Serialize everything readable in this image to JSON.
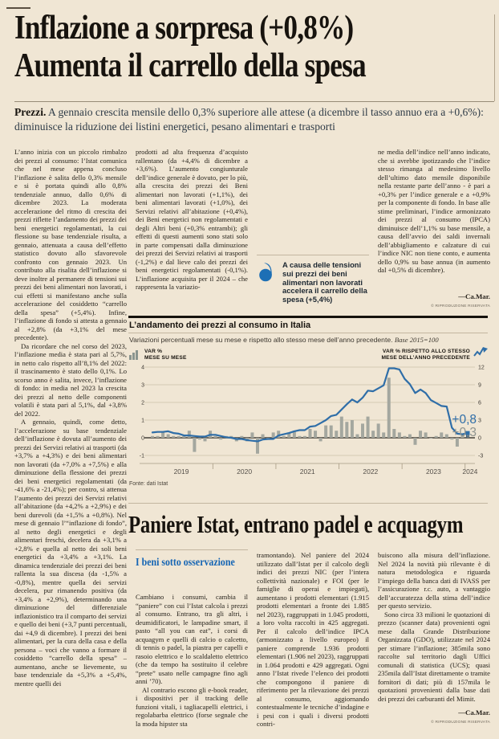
{
  "page": {
    "background": "#f0e6d4"
  },
  "article1": {
    "headline_line1": "Inflazione a sorpresa (+0,8%)",
    "headline_line2": "Aumenta il carrello della spesa",
    "standfirst_kicker": "Prezzi.",
    "standfirst": "A gennaio crescita mensile dello 0,3% superiore alle attese (a dicembre il tasso annuo era a +0,6%): diminuisce la riduzione dei listini energetici, pesano alimentari e trasporti",
    "col1_paras": [
      "L’anno inizia con un piccolo rimbalzo dei prezzi al consumo: l’Istat comunica che nel mese appena concluso l’inflazione è salita dello 0,3% mensile e si è portata quindi allo 0,8% tendenziale annuo, dallo 0,6% di dicembre 2023. La moderata accelerazione del ritmo di crescita dei prezzi riflette l’andamento dei prezzi dei beni energetici regolamentati, la cui flessione su base tendenziale risulta, a gennaio, attenuata a causa dell’effetto statistico dovuto allo sfavorevole confronto con gennaio 2023. Un contributo alla risalita dell’inflazione si deve inoltre al permanere di tensioni sui prezzi dei beni alimentari non lavorati, i cui effetti si manifestano anche sulla accelerazione del cosiddetto “carrello della spesa” (+5,4%). Infine, l’inflazione di fondo si attesta a gennaio al +2,8% (da +3,1% del mese precedente).",
      "Da ricordare che nel corso del 2023, l’inflazione media è stata pari al 5,7%, in netto calo rispetto all’8,1% del 2022: il trascinamento è stato dello 0,1%. Lo scorso anno è salita, invece, l’inflazione di fondo: in media nel 2023 la crescita dei prezzi al netto delle componenti volatili è stata pari al 5,1%, dal +3,8% del 2022.",
      "A gennaio, quindi, come detto, l’accelerazione su base tendenziale dell’inflazione è dovuta all’aumento dei prezzi dei Servizi relativi ai trasporti (da +3,7% a +4,3%) e dei beni alimentari non lavorati (da +7,0% a +7,5%) e alla diminuzione della flessione dei prezzi dei beni energetici regolamentati (da -41,6% a -21,4%); per contro, si attenua l’aumento dei prezzi dei Servizi relativi all’abitazione (da +4,2% a +2,9%) e dei beni durevoli (da +1,5% a +0,8%). Nel mese di gennaio l’“inflazione di fondo”, al netto degli energetici e degli alimentari freschi, decelera da +3,1% a +2,8% e quella al netto dei soli beni energetici da +3,4% a +3,1%. La dinamica tendenziale dei prezzi dei beni rallenta la sua discesa (da -1,5% a -0,8%), mentre quella dei servizi decelera, pur rimanendo positiva (da +3,4% a +2,9%), determinando una diminuzione del differenziale inflazionistico tra il comparto dei servizi e quello dei beni (+3,7 punti percentuali, dai +4,9 di dicembre). I prezzi dei beni alimentari, per la cura della casa e della persona – voci che vanno a formare il cosiddetto “carrello della spesa” – aumentano, anche se lievemente, su base tendenziale da +5,3% a +5,4%, mentre quelli dei"
    ],
    "col2_paras": [
      "prodotti ad alta frequenza d’acquisto rallentano (da +4,4% di dicembre a +3,6%). L’aumento congiunturale dell’indice generale è dovuto, per lo più, alla crescita dei prezzi dei Beni alimentari non lavorati (+1,1%), dei beni alimentari lavorati (+1,0%), dei Servizi relativi all’abitazione (+0,4%), dei Beni energetici non regolamentati e degli Altri beni (+0,3% entrambi); gli effetti di questi aumenti sono stati solo in parte compensati dalla diminuzione dei prezzi dei Servizi relativi ai trasporti (-1,2%) e dal lieve calo dei prezzi dei beni energetici regolamentati (-0,1%). L’inflazione acquisita per il 2024 – che rappresenta la variazio-"
    ],
    "col4_paras": [
      "ne media dell’indice nell’anno indicato, che si avrebbe ipotizzando che l’indice stesso rimanga al medesimo livello dell’ultimo dato mensile disponibile nella restante parte dell’anno - è pari a +0,3% per l’indice generale e a +0,9% per la componente di fondo. In base alle stime preliminari, l’indice armonizzato dei prezzi al consumo (IPCA) diminuisce dell’1,1% su base mensile, a causa dell’avvio dei saldi invernali dell’abbigliamento e calzature di cui l’indice NIC non tiene conto, e aumenta dello 0,9% su base annua (in aumento dal +0,5% di dicembre)."
    ],
    "byline": "—Ca.Mar.",
    "copyright": "© RIPRODUZIONE RISERVATA",
    "pull_quote": "A causa delle tensioni sui prezzi dei beni alimentari non lavorati accelera il carrello della spesa (+5,4%)"
  },
  "chart_data": {
    "type": "bar+line combo",
    "title": "L’andamento dei prezzi al consumo in Italia",
    "subtitle": "Variazioni percentuali mese su mese e rispetto allo stesso mese dell’anno precedente.",
    "subtitle_base": "Base 2015=100",
    "legend_bars_line1": "VAR %",
    "legend_bars_line2": "MESE SU MESE",
    "legend_line_line1": "VAR % RISPETTO ALLO STESSO",
    "legend_line_line2": "MESE DELL’ANNO PRECEDENTE",
    "left_axis_ticks": [
      4,
      3,
      2,
      1,
      0,
      -1
    ],
    "right_axis_ticks": [
      12,
      9,
      6,
      3,
      0,
      -3
    ],
    "ylim_left": [
      -1,
      4
    ],
    "ylim_right": [
      -3,
      12
    ],
    "grid": true,
    "x_start": "2019-01",
    "x_end": "2024-01",
    "frequency": "monthly",
    "years": [
      "2019",
      "2020",
      "2021",
      "2022",
      "2023",
      "2024"
    ],
    "series": [
      {
        "name": "VAR % MESE SU MESE",
        "type": "bar",
        "axis": "left",
        "values": [
          0.1,
          0.1,
          0.3,
          0.2,
          0.1,
          0.1,
          0.1,
          0.4,
          -0.8,
          -0.1,
          -0.2,
          0.4,
          0.1,
          -0.1,
          0.1,
          0.1,
          -0.2,
          0.1,
          -0.2,
          0.3,
          -0.9,
          0.2,
          -0.1,
          0.3,
          0.4,
          0.1,
          0.3,
          0.4,
          0.1,
          0.1,
          0.5,
          0.4,
          -0.2,
          0.7,
          0.7,
          0.4,
          1.2,
          0.9,
          1.0,
          0.2,
          0.8,
          1.2,
          0.4,
          0.8,
          0.3,
          3.4,
          0.5,
          0.3,
          0.1,
          0.2,
          -0.4,
          0.4,
          0.3,
          0.0,
          0.1,
          0.3,
          0.2,
          -0.1,
          -0.5,
          0.2,
          0.3
        ]
      },
      {
        "name": "VAR % RISPETTO ALLO STESSO MESE DELL’ANNO PRECEDENTE",
        "type": "line",
        "axis": "right",
        "values": [
          0.9,
          1.0,
          1.0,
          1.1,
          0.8,
          0.7,
          0.4,
          0.4,
          0.3,
          0.2,
          0.2,
          0.5,
          0.5,
          0.3,
          0.1,
          0.0,
          -0.2,
          -0.2,
          -0.4,
          -0.5,
          -0.6,
          -0.3,
          -0.2,
          -0.2,
          0.4,
          0.6,
          0.8,
          1.1,
          1.3,
          1.3,
          1.9,
          2.0,
          2.5,
          3.0,
          3.7,
          3.9,
          4.8,
          5.7,
          6.5,
          6.0,
          6.8,
          8.0,
          7.9,
          8.4,
          8.9,
          11.8,
          11.8,
          11.6,
          10.0,
          9.1,
          7.6,
          8.2,
          7.6,
          6.4,
          5.9,
          5.4,
          5.3,
          1.7,
          0.7,
          0.6,
          0.8
        ]
      }
    ],
    "annotation_line": "+0,8",
    "annotation_bar": "+0,3",
    "source": "Fonte: dati Istat",
    "colors": {
      "bar": "#a4a79f",
      "bar_highlight": "#47637a",
      "line": "#2f6ea8",
      "annotation_line": "#2f6ea8",
      "annotation_bar": "#8f948f",
      "grid": "#cdc1ab",
      "zero_line": "#44403a",
      "axis_band": "#a79b85",
      "tick_label": "#3f3b35",
      "year_label": "#55504a"
    }
  },
  "article2": {
    "headline": "Paniere Istat, entrano padel e acquagym",
    "kicker": "I beni sotto osservazione",
    "colA_paras": [
      "Cambiano i consumi, cambia il “paniere” con cui l’Istat calcola i prezzi al consumo. Entrano, tra gli altri, i deumidificatori, le lampadine smart, il pasto “all you can eat”, i corsi di acquagym e quelli di calcio o calcetto, di tennis o padel, la piastra per capelli e rasoio elettrico e lo scaldaletto elettrico (che da tempo ha sostituito il celebre “prete” usato nelle campagne fino agli anni ’70).",
      "Al contrario escono gli e-book reader, i dispositivi per il tracking delle funzioni vitali, i tagliacapelli elettrici, i regolabarba elettrico (forse segnale che la moda hipster sta"
    ],
    "colB_paras": [
      "tramontando). Nel paniere del 2024 utilizzato dall’Istat per il calcolo degli indici dei prezzi NIC (per l’intera collettività nazionale) e FOI (per le famiglie di operai e impiegati), aumentano i prodotti elementari (1.915 prodotti elementari a fronte dei 1.885 nel 2023), raggruppati in 1.045 prodotti, a loro volta raccolti in 425 aggregati. Per il calcolo dell’indice IPCA (armonizzato a livello europeo) il paniere comprende 1.936 prodotti elementari (1.906 nel 2023), raggruppati in 1.064 prodotti e 429 aggregati. Ogni anno l’Istat rivede l’elenco dei prodotti che compongono il paniere di riferimento per la rilevazione dei prezzi al consumo, aggiornando contestualmente le tecniche d’indagine e i pesi con i quali i diversi prodotti contri-"
    ],
    "colC_paras": [
      "buiscono alla misura dell’inflazione. Nel 2024 la novità più rilevante è di natura metodologica e riguarda l’impiego della banca dati di IVASS per l’assicurazione r.c. auto, a vantaggio dell’accuratezza della stima dell’indice per questo servizio.",
      "Sono circa 33 milioni le quotazioni di prezzo (scanner data) provenienti ogni mese dalla Grande Distribuzione Organizzata (GDO), utilizzate nel 2024 per stimare l’inflazione; 385mila sono raccolte sul territorio dagli Uffici comunali di statistica (UCS); quasi 235mila dall’Istat direttamente o tramite fornitori di dati; più di 157mila le quotazioni provenienti dalla base dati dei prezzi dei carburanti del Mimit."
    ],
    "byline": "—Ca.Mar.",
    "copyright": "© RIPRODUZIONE RISERVATA"
  }
}
